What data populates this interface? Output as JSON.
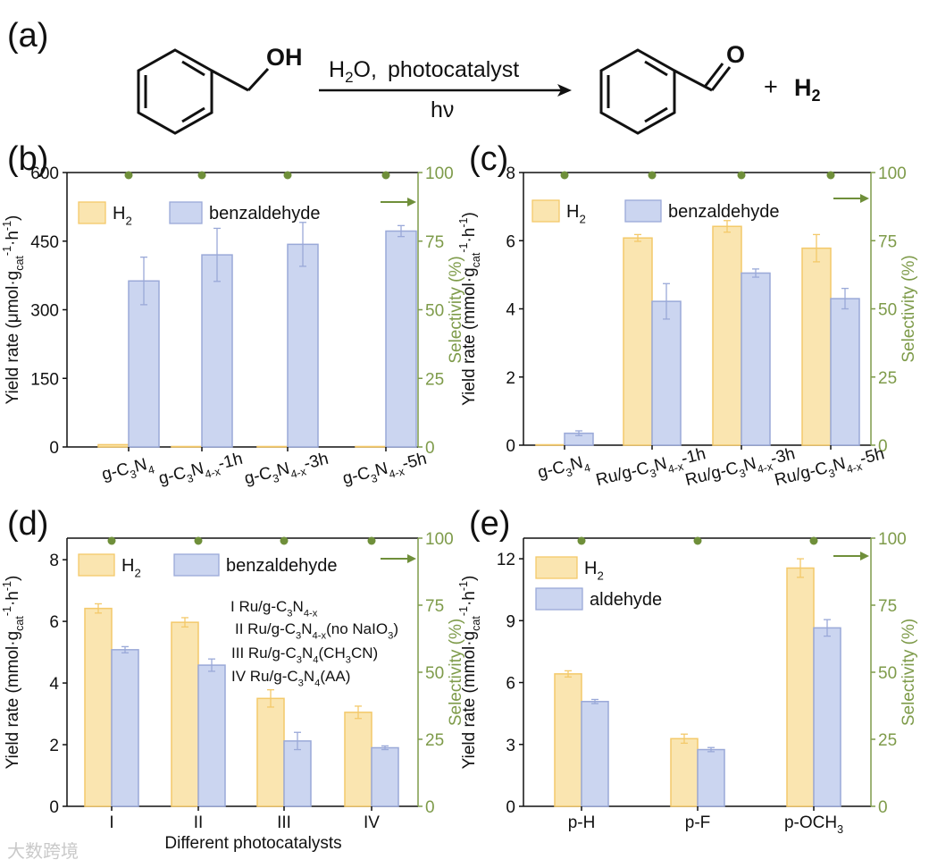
{
  "reaction": {
    "label": "(a)",
    "oh": "OH",
    "o": "O",
    "cond_h2o": "H",
    "cond_sub": "2",
    "cond_o": "O",
    "cond_comma": ",",
    "cond_catalyst": "photocatalyst",
    "hv": "hν",
    "plus": "+",
    "h2": "H",
    "h2_sub": "2"
  },
  "colors": {
    "h2": "#FAE5B0",
    "h2_edge": "#F3C96A",
    "ald": "#CBD5F0",
    "ald_edge": "#9AA9D8",
    "sel": "#6F8F3A",
    "axis_right": "#7E9B4A"
  },
  "chart_data": [
    {
      "id": "b",
      "panel": "(b)",
      "type": "bar",
      "categories": [
        "g-C3N4",
        "g-C3N4-x-1h",
        "g-C3N4-x-3h",
        "g-C3N4-x-5h"
      ],
      "cat_labels": [
        {
          "segs": [
            [
              "g-C",
              "n"
            ],
            [
              "3",
              "s"
            ],
            [
              "N",
              "n"
            ],
            [
              "4",
              "s"
            ]
          ]
        },
        {
          "segs": [
            [
              "g-C",
              "n"
            ],
            [
              "3",
              "s"
            ],
            [
              "N",
              "n"
            ],
            [
              "4-x",
              "s"
            ],
            [
              "-1h",
              "n"
            ]
          ]
        },
        {
          "segs": [
            [
              "g-C",
              "n"
            ],
            [
              "3",
              "s"
            ],
            [
              "N",
              "n"
            ],
            [
              "4-x",
              "s"
            ],
            [
              "-3h",
              "n"
            ]
          ]
        },
        {
          "segs": [
            [
              "g-C",
              "n"
            ],
            [
              "3",
              "s"
            ],
            [
              "N",
              "n"
            ],
            [
              "4-x",
              "s"
            ],
            [
              "-5h",
              "n"
            ]
          ]
        }
      ],
      "series": [
        {
          "name": "H2",
          "legend": [
            [
              "H",
              "n"
            ],
            [
              "2",
              "s"
            ]
          ],
          "values": [
            5,
            1,
            1,
            1
          ],
          "errors": [
            0,
            0,
            0,
            0
          ]
        },
        {
          "name": "benzaldehyde",
          "legend": [
            [
              "benzaldehyde",
              "n"
            ]
          ],
          "values": [
            363,
            420,
            443,
            472
          ],
          "errors": [
            52,
            58,
            48,
            12
          ]
        }
      ],
      "selectivity": [
        100,
        100,
        100,
        100
      ],
      "ylim": [
        0,
        600
      ],
      "yticks": [
        0,
        150,
        300,
        450,
        600
      ],
      "y2lim": [
        0,
        100
      ],
      "y2ticks": [
        0,
        25,
        50,
        75,
        100
      ],
      "ylabel": [
        [
          "Yield rate (μmol·g",
          "n"
        ],
        [
          "cat",
          "s"
        ],
        [
          "-1",
          "p"
        ],
        [
          "·h",
          "n"
        ],
        [
          "-1",
          "p"
        ],
        [
          ")",
          "n"
        ]
      ],
      "y2label": "Selectivity (%)",
      "xlabel": ""
    },
    {
      "id": "c",
      "panel": "(c)",
      "type": "bar",
      "categories": [
        "g-C3N4",
        "Ru/g-C3N4-x-1h",
        "Ru/g-C3N4-x-3h",
        "Ru/g-C3N4-x-5h"
      ],
      "cat_labels": [
        {
          "segs": [
            [
              "g-C",
              "n"
            ],
            [
              "3",
              "s"
            ],
            [
              "N",
              "n"
            ],
            [
              "4",
              "s"
            ]
          ]
        },
        {
          "segs": [
            [
              "Ru/g-C",
              "n"
            ],
            [
              "3",
              "s"
            ],
            [
              "N",
              "n"
            ],
            [
              "4-x",
              "s"
            ],
            [
              "-1h",
              "n"
            ]
          ]
        },
        {
          "segs": [
            [
              "Ru/g-C",
              "n"
            ],
            [
              "3",
              "s"
            ],
            [
              "N",
              "n"
            ],
            [
              "4-x",
              "s"
            ],
            [
              "-3h",
              "n"
            ]
          ]
        },
        {
          "segs": [
            [
              "Ru/g-C",
              "n"
            ],
            [
              "3",
              "s"
            ],
            [
              "N",
              "n"
            ],
            [
              "4-x",
              "s"
            ],
            [
              "-5h",
              "n"
            ]
          ]
        }
      ],
      "series": [
        {
          "name": "H2",
          "legend": [
            [
              "H",
              "n"
            ],
            [
              "2",
              "s"
            ]
          ],
          "values": [
            0,
            6.08,
            6.42,
            5.78
          ],
          "errors": [
            0,
            0.1,
            0.17,
            0.4
          ]
        },
        {
          "name": "benzaldehyde",
          "legend": [
            [
              "benzaldehyde",
              "n"
            ]
          ],
          "values": [
            0.35,
            4.22,
            5.05,
            4.3
          ],
          "errors": [
            0.07,
            0.52,
            0.12,
            0.3
          ]
        }
      ],
      "selectivity": [
        100,
        100,
        100,
        100
      ],
      "ylim": [
        0,
        8
      ],
      "yticks": [
        0,
        2,
        4,
        6,
        8
      ],
      "y2lim": [
        0,
        100
      ],
      "y2ticks": [
        0,
        25,
        50,
        75,
        100
      ],
      "ylabel": [
        [
          "Yield rate (mmol·g",
          "n"
        ],
        [
          "cat",
          "s"
        ],
        [
          "-1",
          "p"
        ],
        [
          "·h",
          "n"
        ],
        [
          "-1",
          "p"
        ],
        [
          ")",
          "n"
        ]
      ],
      "y2label": "Selectivity (%)",
      "xlabel": ""
    },
    {
      "id": "d",
      "panel": "(d)",
      "type": "bar",
      "categories": [
        "I",
        "II",
        "III",
        "IV"
      ],
      "cat_labels": [
        {
          "segs": [
            [
              "I",
              "n"
            ]
          ]
        },
        {
          "segs": [
            [
              "II",
              "n"
            ]
          ]
        },
        {
          "segs": [
            [
              "III",
              "n"
            ]
          ]
        },
        {
          "segs": [
            [
              "IV",
              "n"
            ]
          ]
        }
      ],
      "series": [
        {
          "name": "H2",
          "legend": [
            [
              "H",
              "n"
            ],
            [
              "2",
              "s"
            ]
          ],
          "values": [
            6.42,
            5.97,
            3.5,
            3.05
          ],
          "errors": [
            0.15,
            0.15,
            0.28,
            0.2
          ]
        },
        {
          "name": "benzaldehyde",
          "legend": [
            [
              "benzaldehyde",
              "n"
            ]
          ],
          "values": [
            5.08,
            4.58,
            2.12,
            1.9
          ],
          "errors": [
            0.1,
            0.2,
            0.28,
            0.06
          ]
        }
      ],
      "selectivity": [
        100,
        100,
        100,
        100
      ],
      "ylim": [
        0,
        8.7
      ],
      "yticks": [
        0,
        2,
        4,
        6,
        8
      ],
      "y2lim": [
        0,
        100
      ],
      "y2ticks": [
        0,
        25,
        50,
        75,
        100
      ],
      "ylabel": [
        [
          "Yield rate (mmol·g",
          "n"
        ],
        [
          "cat",
          "s"
        ],
        [
          "-1",
          "p"
        ],
        [
          "·h",
          "n"
        ],
        [
          "-1",
          "p"
        ],
        [
          ")",
          "n"
        ]
      ],
      "y2label": "Selectivity (%)",
      "xlabel": "Different photocatalysts",
      "annotations": [
        [
          [
            "I Ru/g-C",
            "n"
          ],
          [
            "3",
            "s"
          ],
          [
            "N",
            "n"
          ],
          [
            "4-x",
            "s"
          ]
        ],
        [
          [
            "II Ru/g-C",
            "n"
          ],
          [
            "3",
            "s"
          ],
          [
            "N",
            "n"
          ],
          [
            "4-x",
            "s"
          ],
          [
            "(no NaIO",
            "n"
          ],
          [
            "3",
            "s"
          ],
          [
            ")",
            "n"
          ]
        ],
        [
          [
            "III Ru/g-C",
            "n"
          ],
          [
            "3",
            "s"
          ],
          [
            "N",
            "n"
          ],
          [
            "4",
            "s"
          ],
          [
            "(CH",
            "n"
          ],
          [
            "3",
            "s"
          ],
          [
            "CN)",
            "n"
          ]
        ],
        [
          [
            "IV Ru/g-C",
            "n"
          ],
          [
            "3",
            "s"
          ],
          [
            "N",
            "n"
          ],
          [
            "4",
            "s"
          ],
          [
            "(AA)",
            "n"
          ]
        ]
      ]
    },
    {
      "id": "e",
      "panel": "(e)",
      "type": "bar",
      "categories": [
        "p-H",
        "p-F",
        "p-OCH3"
      ],
      "cat_labels": [
        {
          "segs": [
            [
              "p-H",
              "n"
            ]
          ]
        },
        {
          "segs": [
            [
              "p-F",
              "n"
            ]
          ]
        },
        {
          "segs": [
            [
              "p-OCH",
              "n"
            ],
            [
              "3",
              "s"
            ]
          ]
        }
      ],
      "series": [
        {
          "name": "H2",
          "legend": [
            [
              "H",
              "n"
            ],
            [
              "2",
              "s"
            ]
          ],
          "values": [
            6.42,
            3.28,
            11.55
          ],
          "errors": [
            0.15,
            0.22,
            0.45
          ]
        },
        {
          "name": "aldehyde",
          "legend": [
            [
              "aldehyde",
              "n"
            ]
          ],
          "values": [
            5.08,
            2.75,
            8.65
          ],
          "errors": [
            0.1,
            0.1,
            0.4
          ]
        }
      ],
      "selectivity": [
        100,
        100,
        100
      ],
      "ylim": [
        0,
        13
      ],
      "yticks": [
        0,
        3,
        6,
        9,
        12
      ],
      "y2lim": [
        0,
        100
      ],
      "y2ticks": [
        0,
        25,
        50,
        75,
        100
      ],
      "ylabel": [
        [
          "Yield rate (mmol·g",
          "n"
        ],
        [
          "cat",
          "s"
        ],
        [
          "-1",
          "p"
        ],
        [
          "·h",
          "n"
        ],
        [
          "-1",
          "p"
        ],
        [
          ")",
          "n"
        ]
      ],
      "y2label": "Selectivity (%)",
      "xlabel": ""
    }
  ],
  "watermark": "大数跨境"
}
